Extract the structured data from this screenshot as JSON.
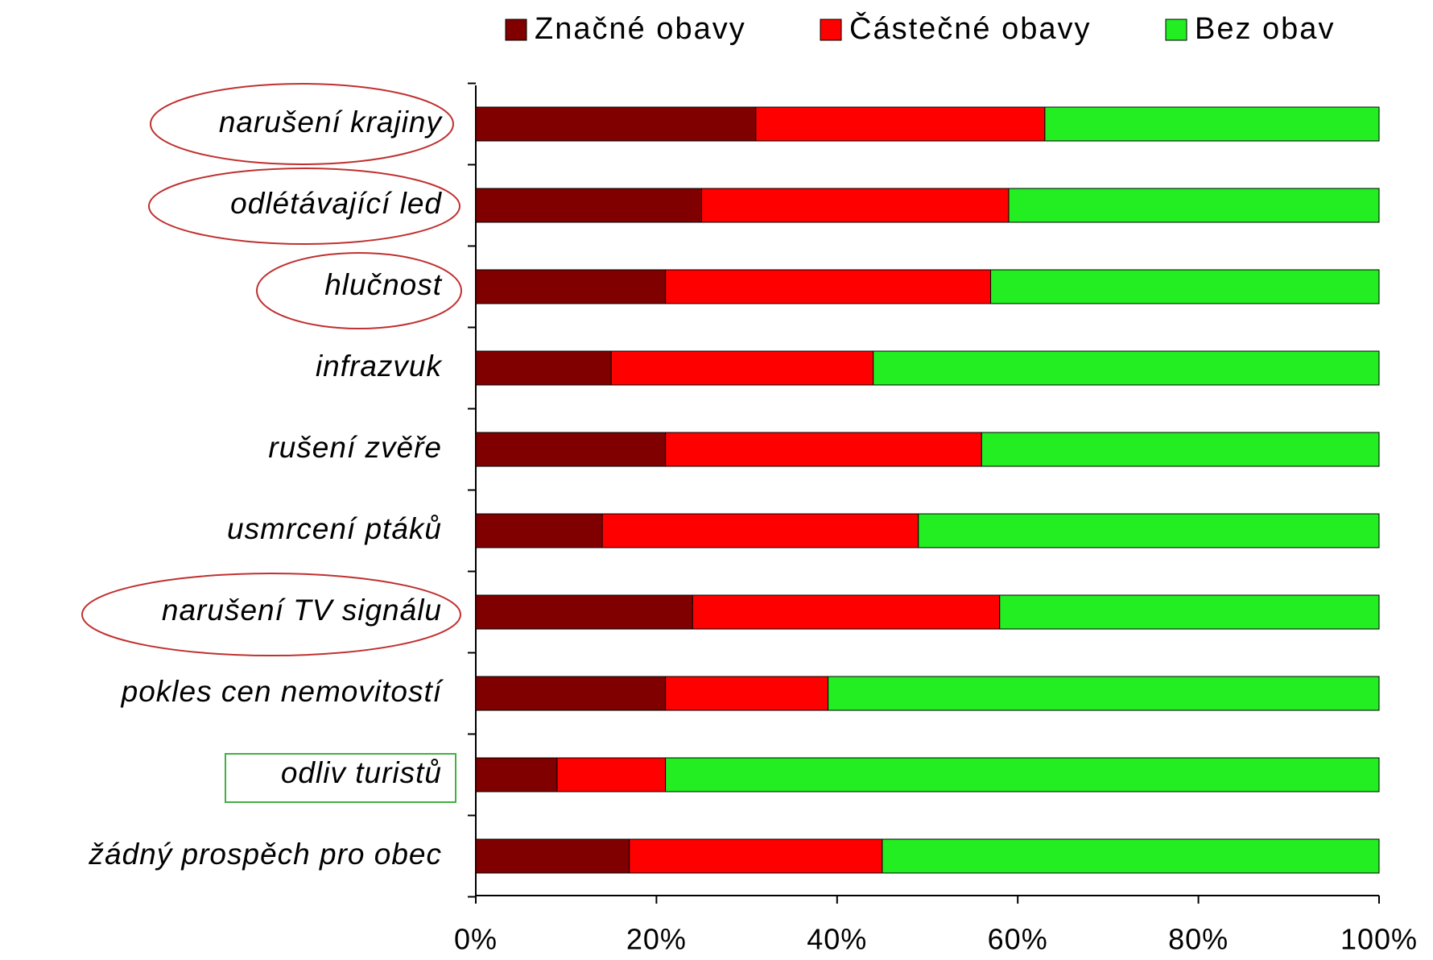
{
  "chart_data": {
    "type": "stacked_barh",
    "categories": [
      "narušení krajiny",
      "odlétávající  led",
      "hlučnost",
      "infrazvuk",
      "rušení zvěře",
      "usmrcení ptáků",
      "narušení TV signálu",
      "pokles cen nemovitostí",
      "odliv turistů",
      "žádný prospěch pro obec"
    ],
    "series": [
      {
        "name": "Značné obavy",
        "color": "#800000",
        "values": [
          31,
          25,
          21,
          15,
          21,
          14,
          24,
          21,
          9,
          17
        ]
      },
      {
        "name": "Částečné obavy",
        "color": "#ff0000",
        "values": [
          32,
          34,
          36,
          29,
          35,
          35,
          34,
          18,
          12,
          28
        ]
      },
      {
        "name": "Bez obav",
        "color": "#22ee22",
        "values": [
          37,
          41,
          43,
          56,
          44,
          51,
          42,
          61,
          79,
          55
        ]
      }
    ],
    "xlim": [
      0,
      100
    ],
    "xticks": [
      {
        "value": 0,
        "label": "0%"
      },
      {
        "value": 20,
        "label": "20%"
      },
      {
        "value": 40,
        "label": "40%"
      },
      {
        "value": 60,
        "label": "60%"
      },
      {
        "value": 80,
        "label": "80%"
      },
      {
        "value": 100,
        "label": "100%"
      }
    ],
    "legend": "top"
  }
}
